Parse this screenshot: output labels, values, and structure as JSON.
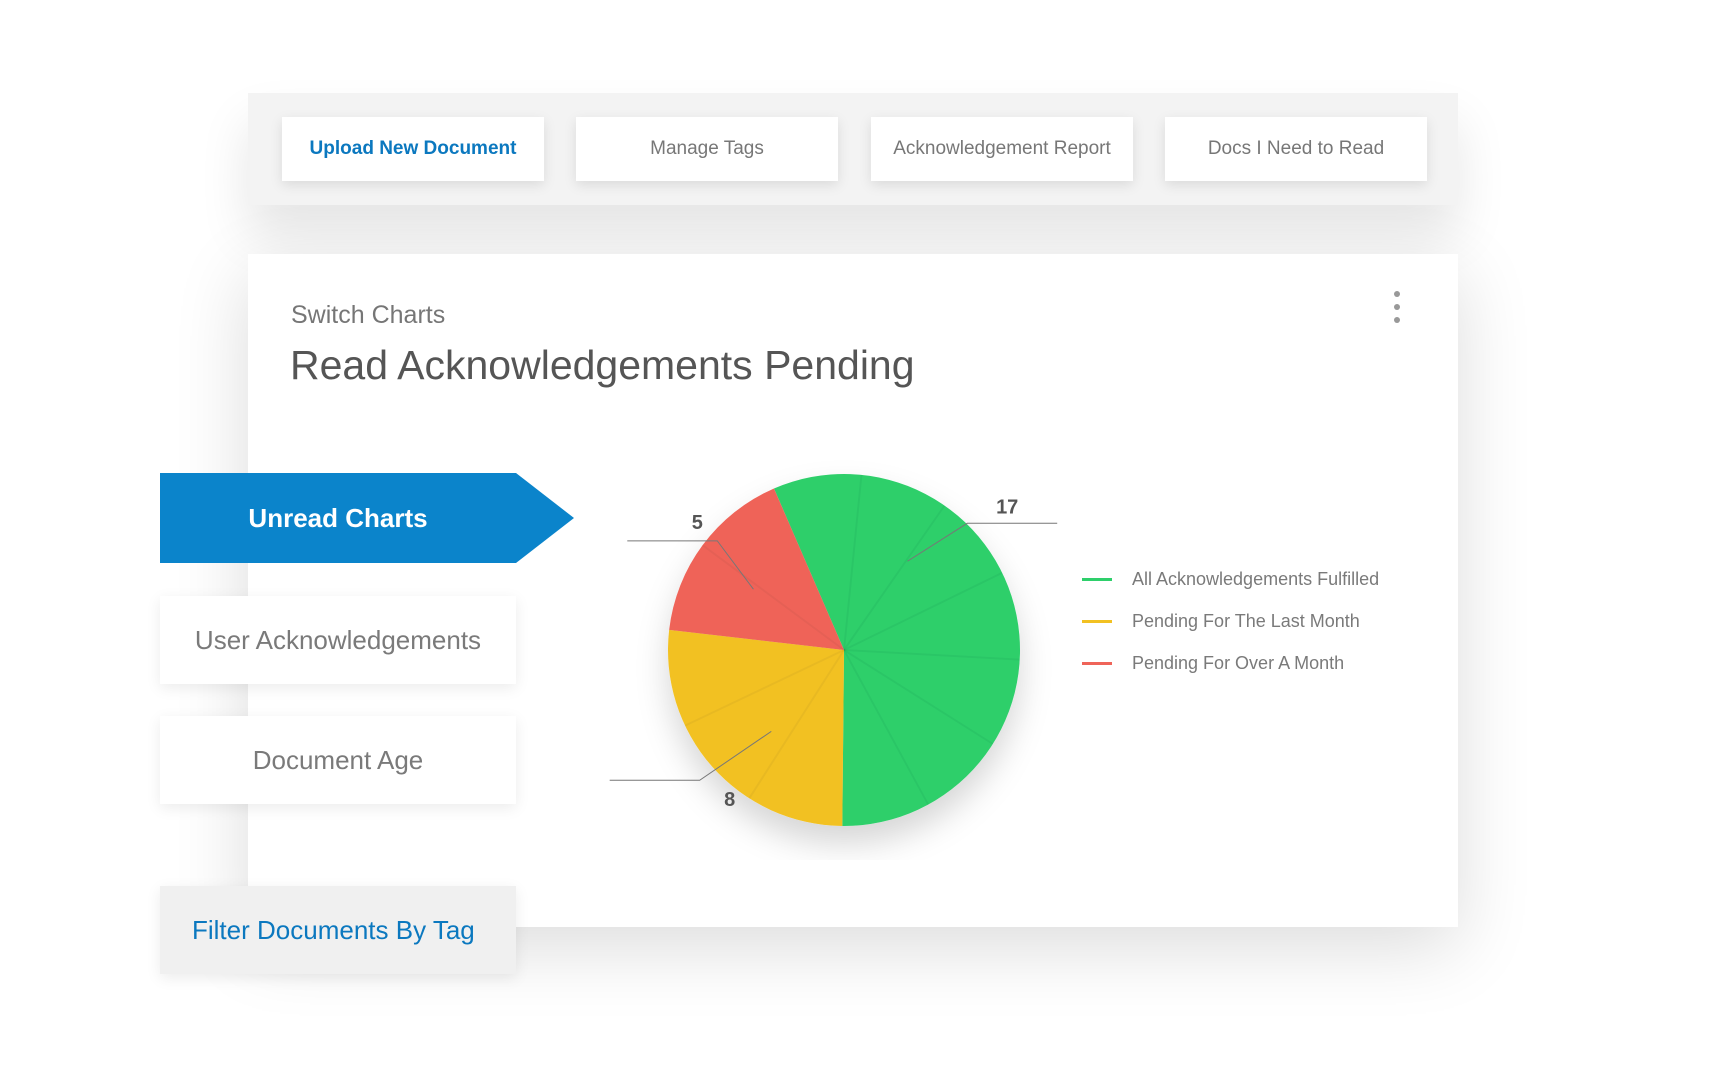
{
  "toolbar": {
    "buttons": [
      {
        "label": "Upload New Document",
        "primary": true
      },
      {
        "label": "Manage Tags",
        "primary": false
      },
      {
        "label": "Acknowledgement Report",
        "primary": false
      },
      {
        "label": "Docs I Need to Read",
        "primary": false
      }
    ]
  },
  "panel": {
    "subtitle": "Switch Charts",
    "title": "Read Acknowledgements Pending",
    "menu_icon": "more-vertical-icon"
  },
  "sidebar": {
    "active": "Unread Charts",
    "items": [
      "User Acknowledgements",
      "Document Age"
    ],
    "filter": "Filter Documents By Tag"
  },
  "colors": {
    "accent": "#0b84cb",
    "green": "#2ecf6b",
    "yellow": "#f2c122",
    "red": "#ef6459"
  },
  "chart_data": {
    "type": "pie",
    "categories": [
      "All Acknowledgements Fulfilled",
      "Pending For The Last Month",
      "Pending For Over A Month"
    ],
    "values": [
      17,
      8,
      5
    ],
    "data_labels": [
      "17",
      "8",
      "5"
    ],
    "legend": [
      "All Acknowledgements Fulfilled",
      "Pending For The Last Month",
      "Pending For Over A Month"
    ],
    "legend_position": "right",
    "colors": [
      "#2ecf6b",
      "#f2c122",
      "#ef6459"
    ]
  }
}
